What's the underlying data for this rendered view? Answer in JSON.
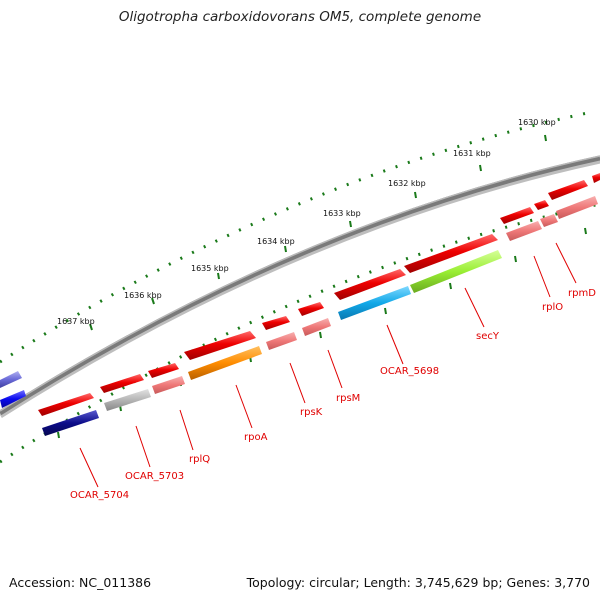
{
  "title": "Oligotropha carboxidovorans OM5, complete genome",
  "footer": {
    "accession": "Accession: NC_011386",
    "summary": "Topology: circular; Length: 3,745,629 bp; Genes: 3,770"
  },
  "ruler_labels": [
    "1637 kbp",
    "1636 kbp",
    "1635 kbp",
    "1634 kbp",
    "1633 kbp",
    "1632 kbp",
    "1631 kbp",
    "1630 kbp"
  ],
  "gene_labels": [
    "OCAR_5704",
    "OCAR_5703",
    "rplQ",
    "rpoA",
    "rpsK",
    "rpsM",
    "OCAR_5698",
    "secY",
    "rplO",
    "rpmD"
  ],
  "colors": {
    "gene_red": "#e80000",
    "gene_pink": "#f07a7a",
    "backbone": "#777777",
    "ruler_green": "#1a7a1a",
    "orange": "#ff8c00",
    "cyan": "#11a8e8",
    "lime": "#99ee33",
    "gray": "#b5b5b5",
    "navy": "#0c0c8a",
    "blue": "#0a0aee",
    "slate": "#6a6ad8",
    "label_red": "#e00000"
  }
}
